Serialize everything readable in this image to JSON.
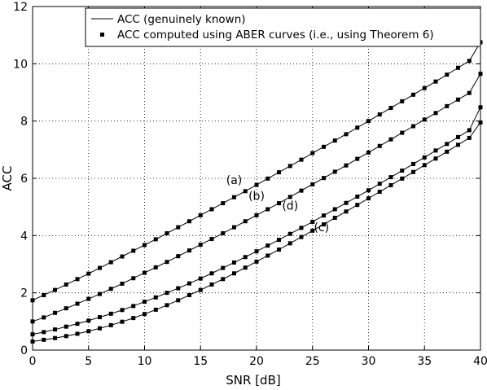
{
  "chart_data": {
    "type": "line",
    "title": "",
    "xlabel": "SNR [dB]",
    "ylabel": "ACC",
    "xlim": [
      0,
      40
    ],
    "ylim": [
      0,
      12
    ],
    "xticks": [
      0,
      5,
      10,
      15,
      20,
      25,
      30,
      35,
      40
    ],
    "yticks": [
      0,
      2,
      4,
      6,
      8,
      10,
      12
    ],
    "grid": true,
    "legend_position": "top-right",
    "legend": [
      {
        "label": "ACC (genuinely known)",
        "marker": "line"
      },
      {
        "label": "ACC computed using ABER curves (i.e., using Theorem 6)",
        "marker": "square"
      }
    ],
    "x": [
      0,
      1,
      2,
      3,
      4,
      5,
      6,
      7,
      8,
      9,
      10,
      11,
      12,
      13,
      14,
      15,
      16,
      17,
      18,
      19,
      20,
      21,
      22,
      23,
      24,
      25,
      26,
      27,
      28,
      29,
      30,
      31,
      32,
      33,
      34,
      35,
      36,
      37,
      38,
      39,
      40
    ],
    "series": [
      {
        "label": "(a)",
        "values": [
          1.74,
          1.92,
          2.1,
          2.29,
          2.48,
          2.67,
          2.87,
          3.07,
          3.27,
          3.47,
          3.67,
          3.87,
          4.08,
          4.29,
          4.5,
          4.71,
          4.92,
          5.13,
          5.34,
          5.55,
          5.77,
          5.99,
          6.21,
          6.43,
          6.65,
          6.88,
          7.1,
          7.32,
          7.54,
          7.77,
          8.0,
          8.23,
          8.46,
          8.69,
          8.92,
          9.15,
          9.38,
          9.62,
          9.86,
          10.1,
          10.75
        ]
      },
      {
        "label": "(b)",
        "values": [
          1.0,
          1.14,
          1.3,
          1.46,
          1.62,
          1.79,
          1.96,
          2.14,
          2.32,
          2.51,
          2.7,
          2.89,
          3.08,
          3.28,
          3.48,
          3.68,
          3.88,
          4.08,
          4.29,
          4.5,
          4.71,
          4.92,
          5.13,
          5.35,
          5.57,
          5.79,
          6.01,
          6.23,
          6.45,
          6.68,
          6.9,
          7.13,
          7.36,
          7.59,
          7.82,
          8.05,
          8.28,
          8.52,
          8.75,
          8.98,
          9.65
        ]
      },
      {
        "label": "(c)",
        "values": [
          0.3,
          0.36,
          0.42,
          0.49,
          0.57,
          0.66,
          0.76,
          0.87,
          0.99,
          1.12,
          1.26,
          1.41,
          1.57,
          1.74,
          1.92,
          2.1,
          2.29,
          2.48,
          2.68,
          2.88,
          3.09,
          3.3,
          3.51,
          3.73,
          3.95,
          4.17,
          4.39,
          4.62,
          4.84,
          5.07,
          5.3,
          5.53,
          5.76,
          5.99,
          6.22,
          6.46,
          6.69,
          6.93,
          7.17,
          7.41,
          7.95
        ]
      },
      {
        "label": "(d)",
        "values": [
          0.55,
          0.63,
          0.72,
          0.82,
          0.92,
          1.03,
          1.15,
          1.27,
          1.4,
          1.54,
          1.69,
          1.84,
          2.0,
          2.16,
          2.33,
          2.5,
          2.68,
          2.87,
          3.06,
          3.25,
          3.45,
          3.65,
          3.85,
          4.06,
          4.27,
          4.48,
          4.7,
          4.92,
          5.14,
          5.36,
          5.58,
          5.81,
          6.04,
          6.27,
          6.5,
          6.73,
          6.97,
          7.2,
          7.44,
          7.68,
          8.48
        ]
      }
    ],
    "annotations": [
      {
        "text": "(a)",
        "x": 18.0,
        "y": 5.8
      },
      {
        "text": "(b)",
        "x": 20.0,
        "y": 5.25
      },
      {
        "text": "(d)",
        "x": 23.0,
        "y": 4.9
      },
      {
        "text": "(c)",
        "x": 25.8,
        "y": 4.15
      }
    ]
  }
}
